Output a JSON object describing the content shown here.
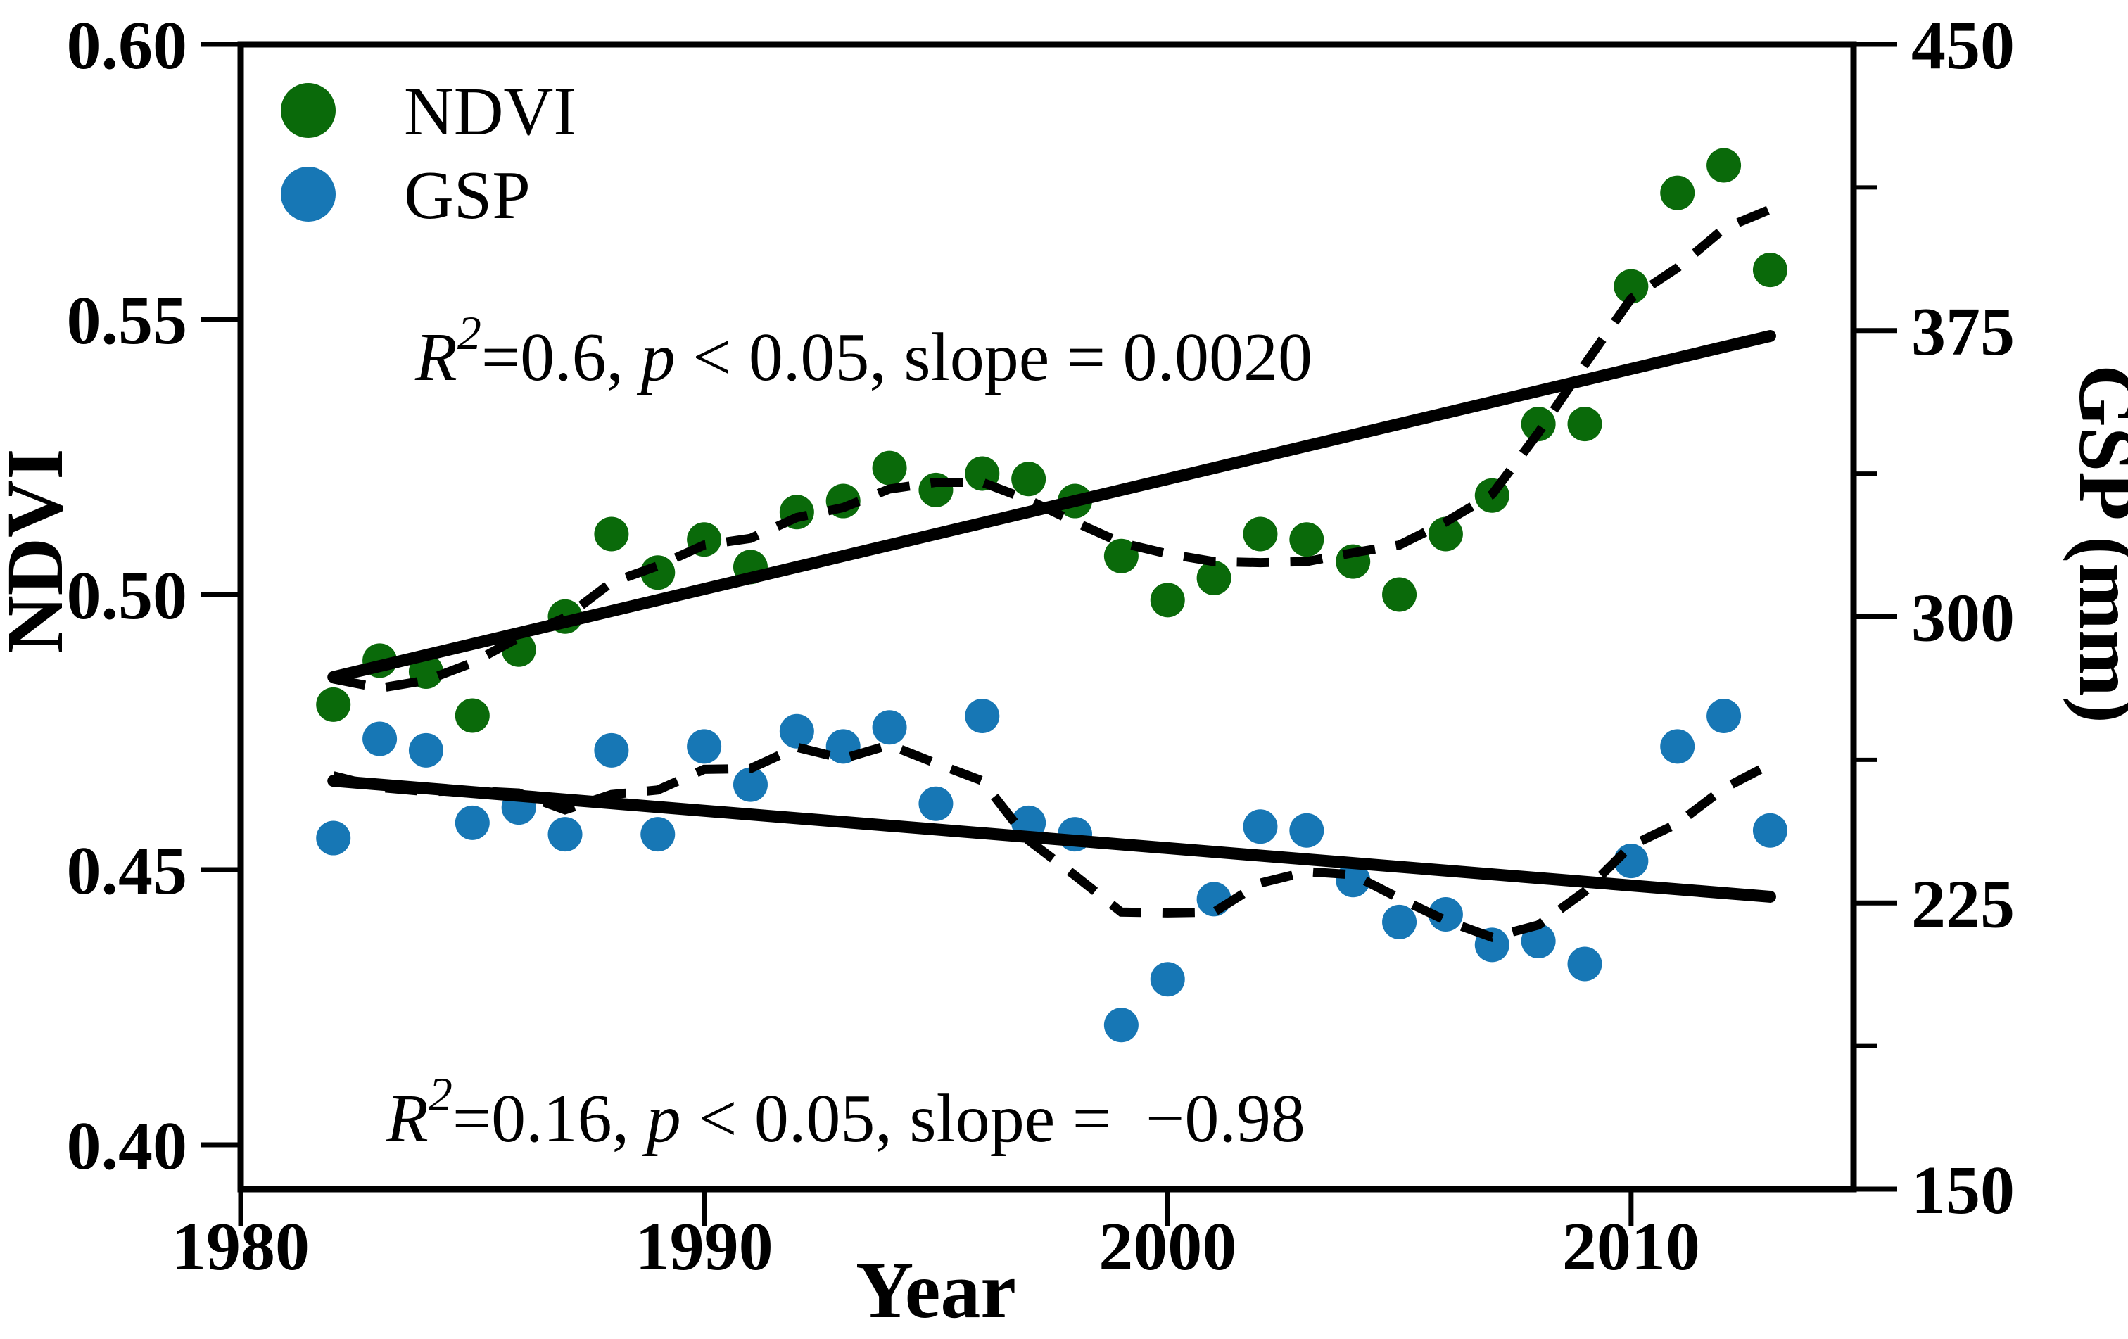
{
  "figure": {
    "background": "#ffffff",
    "frame_color": "#000000"
  },
  "axes": {
    "x": {
      "title": "Year",
      "ticks": [
        "1980",
        "1990",
        "2000",
        "2010"
      ],
      "range": [
        1980,
        2014.8
      ]
    },
    "y_left": {
      "title": "NDVI",
      "ticks": [
        "0.60",
        "0.55",
        "0.50",
        "0.45",
        "0.40"
      ],
      "range": [
        0.392,
        0.6
      ]
    },
    "y_right": {
      "title": "GSP (mm)",
      "ticks": [
        "450",
        "375",
        "300",
        "225",
        "150"
      ],
      "minor_ticks": [
        412.5,
        337.5,
        262.5,
        187.5
      ],
      "range": [
        150,
        450
      ]
    }
  },
  "legend": {
    "items": [
      {
        "label": "NDVI",
        "color": "#0a6a0a"
      },
      {
        "label": "GSP",
        "color": "#1777b5"
      }
    ]
  },
  "annotations": [
    {
      "name": "ndvi-stats",
      "r": "R",
      "sup": "2",
      "eq": "=0.6, ",
      "p": "p",
      "tail": " < 0.05, slope = 0.0020"
    },
    {
      "name": "gsp-stats",
      "r": "R",
      "sup": "2",
      "eq": "=0.16, ",
      "p": "p",
      "tail": " < 0.05, slope =  −0.98"
    }
  ],
  "chart_data": {
    "type": "scatter",
    "title": "",
    "xlabel": "Year",
    "ylabel_left": "NDVI",
    "ylabel_right": "GSP (mm)",
    "grid": false,
    "legend_position": "upper-left",
    "xlim": [
      1980,
      2014.8
    ],
    "ylim_left": [
      0.392,
      0.6
    ],
    "ylim_right": [
      150,
      450
    ],
    "x_ticks": [
      1980,
      1990,
      2000,
      2010
    ],
    "y_left_ticks": [
      "0.60",
      "0.55",
      "0.50",
      "0.45",
      "0.40"
    ],
    "y_right_ticks": [
      "450",
      "375",
      "300",
      "225",
      "150"
    ],
    "y_right_minor_ticks": [
      412.5,
      337.5,
      262.5,
      187.5
    ],
    "years": [
      1982,
      1983,
      1984,
      1985,
      1986,
      1987,
      1988,
      1989,
      1990,
      1991,
      1992,
      1993,
      1994,
      1995,
      1996,
      1997,
      1998,
      1999,
      2000,
      2001,
      2002,
      2003,
      2004,
      2005,
      2006,
      2007,
      2008,
      2009,
      2010,
      2011,
      2012,
      2013
    ],
    "series": [
      {
        "name": "NDVI",
        "axis": "left",
        "color": "#0a6a0a",
        "marker": "circle",
        "values": [
          0.48,
          0.488,
          0.486,
          0.478,
          0.49,
          0.496,
          0.511,
          0.504,
          0.51,
          0.505,
          0.515,
          0.517,
          0.523,
          0.519,
          0.522,
          0.521,
          0.517,
          0.507,
          0.499,
          0.503,
          0.511,
          0.51,
          0.506,
          0.5,
          0.511,
          0.518,
          0.531,
          0.531,
          0.556,
          0.573,
          0.578,
          0.559
        ],
        "trend": {
          "type": "linear",
          "slope_per_year": 0.002,
          "value_at_1982": 0.485,
          "r2": 0.6,
          "p": "< 0.05",
          "draw_years": [
            1982,
            2013
          ]
        },
        "smooth": {
          "type": "5yr_moving_average",
          "style": "dashed"
        }
      },
      {
        "name": "GSP",
        "axis": "right",
        "color": "#1777b5",
        "marker": "circle",
        "values": [
          242,
          268,
          265,
          246,
          250,
          243,
          265,
          243,
          266,
          256,
          270,
          266,
          271,
          251,
          274,
          246,
          243,
          193,
          205,
          226,
          245,
          244,
          231,
          220,
          222,
          214,
          215,
          209,
          236,
          266,
          274,
          244
        ],
        "trend": {
          "type": "linear",
          "slope_per_year": -0.98,
          "value_at_1982": 257,
          "r2": 0.16,
          "p": "< 0.05",
          "draw_years": [
            1982,
            2013
          ]
        },
        "smooth": {
          "type": "5yr_moving_average",
          "style": "dashed"
        }
      }
    ]
  }
}
